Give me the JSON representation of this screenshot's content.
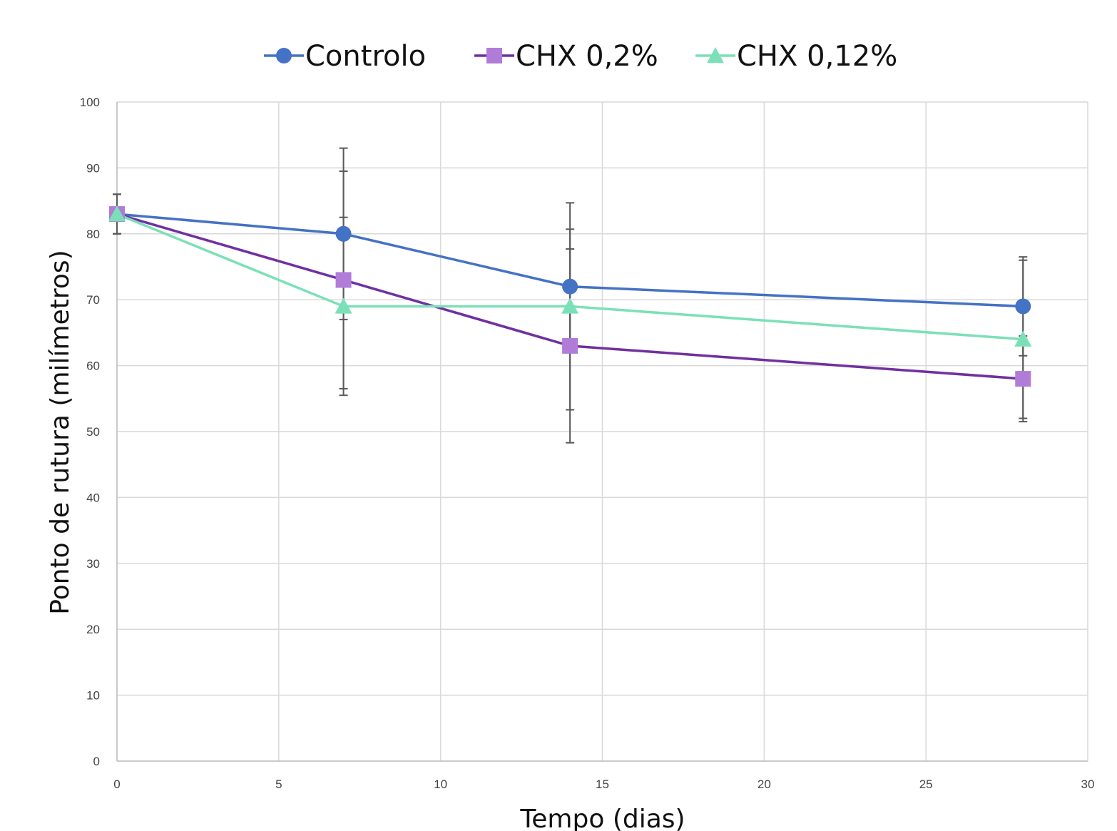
{
  "chart_data": {
    "type": "line",
    "title": "",
    "xlabel": "Tempo (dias)",
    "ylabel": "Ponto de rutura (milímetros)",
    "xlim": [
      0,
      30
    ],
    "ylim": [
      0,
      100
    ],
    "x_ticks": [
      "0",
      "5",
      "10",
      "15",
      "20",
      "25",
      "30"
    ],
    "y_ticks": [
      "0",
      "10",
      "20",
      "30",
      "40",
      "50",
      "60",
      "70",
      "80",
      "90",
      "100"
    ],
    "grid": true,
    "legend_position": "top-center",
    "x": [
      0,
      7,
      14,
      28
    ],
    "series": [
      {
        "name": "Controlo",
        "values": [
          83,
          80,
          72,
          69
        ],
        "error": [
          3,
          13,
          8.7,
          7.5
        ],
        "color": "#4472c4",
        "marker": "circle"
      },
      {
        "name": "CHX  0,2%",
        "values": [
          83,
          73,
          63,
          58
        ],
        "error": [
          3,
          16.5,
          14.7,
          6.5
        ],
        "color": "#7030a0",
        "marker_color": "#b07cd8",
        "marker": "square"
      },
      {
        "name": "CHX 0,12%",
        "values": [
          83,
          69,
          69,
          64
        ],
        "error": [
          3,
          13.5,
          15.7,
          12
        ],
        "color": "#7be0b8",
        "marker": "triangle"
      }
    ],
    "error_bar_color": "#595959"
  }
}
